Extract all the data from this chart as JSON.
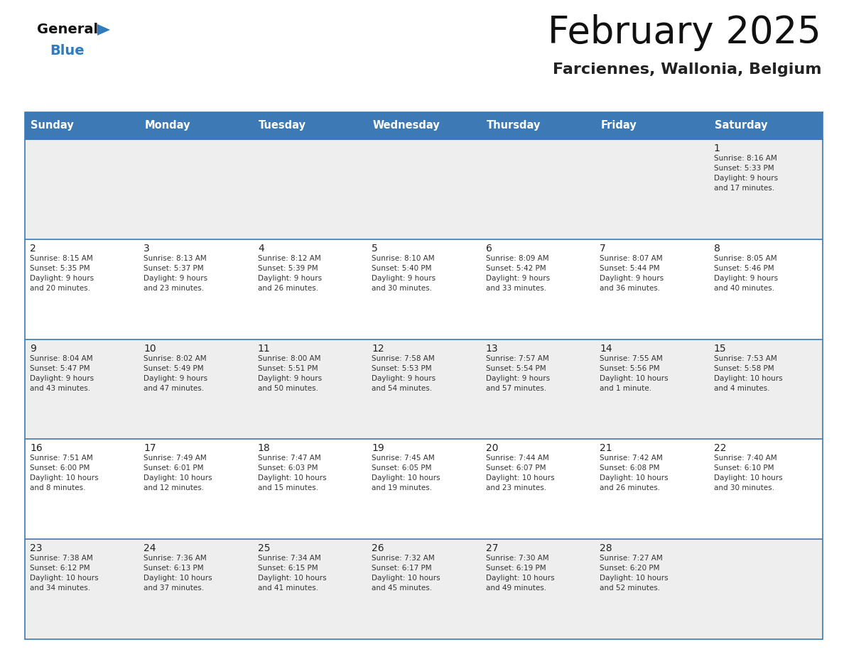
{
  "title": "February 2025",
  "subtitle": "Farciennes, Wallonia, Belgium",
  "days_of_week": [
    "Sunday",
    "Monday",
    "Tuesday",
    "Wednesday",
    "Thursday",
    "Friday",
    "Saturday"
  ],
  "header_bg": "#3d7ab5",
  "header_text": "#ffffff",
  "row_bg_odd": "#eeeeee",
  "row_bg_even": "#ffffff",
  "cell_border": "#3d7ab5",
  "cell_border_light": "#cccccc",
  "day_number_color": "#222222",
  "day_text_color": "#333333",
  "title_color": "#111111",
  "subtitle_color": "#222222",
  "logo_general_color": "#111111",
  "logo_blue_color": "#2e7bbf",
  "calendar": [
    [
      {
        "day": "",
        "info": ""
      },
      {
        "day": "",
        "info": ""
      },
      {
        "day": "",
        "info": ""
      },
      {
        "day": "",
        "info": ""
      },
      {
        "day": "",
        "info": ""
      },
      {
        "day": "",
        "info": ""
      },
      {
        "day": "1",
        "info": "Sunrise: 8:16 AM\nSunset: 5:33 PM\nDaylight: 9 hours\nand 17 minutes."
      }
    ],
    [
      {
        "day": "2",
        "info": "Sunrise: 8:15 AM\nSunset: 5:35 PM\nDaylight: 9 hours\nand 20 minutes."
      },
      {
        "day": "3",
        "info": "Sunrise: 8:13 AM\nSunset: 5:37 PM\nDaylight: 9 hours\nand 23 minutes."
      },
      {
        "day": "4",
        "info": "Sunrise: 8:12 AM\nSunset: 5:39 PM\nDaylight: 9 hours\nand 26 minutes."
      },
      {
        "day": "5",
        "info": "Sunrise: 8:10 AM\nSunset: 5:40 PM\nDaylight: 9 hours\nand 30 minutes."
      },
      {
        "day": "6",
        "info": "Sunrise: 8:09 AM\nSunset: 5:42 PM\nDaylight: 9 hours\nand 33 minutes."
      },
      {
        "day": "7",
        "info": "Sunrise: 8:07 AM\nSunset: 5:44 PM\nDaylight: 9 hours\nand 36 minutes."
      },
      {
        "day": "8",
        "info": "Sunrise: 8:05 AM\nSunset: 5:46 PM\nDaylight: 9 hours\nand 40 minutes."
      }
    ],
    [
      {
        "day": "9",
        "info": "Sunrise: 8:04 AM\nSunset: 5:47 PM\nDaylight: 9 hours\nand 43 minutes."
      },
      {
        "day": "10",
        "info": "Sunrise: 8:02 AM\nSunset: 5:49 PM\nDaylight: 9 hours\nand 47 minutes."
      },
      {
        "day": "11",
        "info": "Sunrise: 8:00 AM\nSunset: 5:51 PM\nDaylight: 9 hours\nand 50 minutes."
      },
      {
        "day": "12",
        "info": "Sunrise: 7:58 AM\nSunset: 5:53 PM\nDaylight: 9 hours\nand 54 minutes."
      },
      {
        "day": "13",
        "info": "Sunrise: 7:57 AM\nSunset: 5:54 PM\nDaylight: 9 hours\nand 57 minutes."
      },
      {
        "day": "14",
        "info": "Sunrise: 7:55 AM\nSunset: 5:56 PM\nDaylight: 10 hours\nand 1 minute."
      },
      {
        "day": "15",
        "info": "Sunrise: 7:53 AM\nSunset: 5:58 PM\nDaylight: 10 hours\nand 4 minutes."
      }
    ],
    [
      {
        "day": "16",
        "info": "Sunrise: 7:51 AM\nSunset: 6:00 PM\nDaylight: 10 hours\nand 8 minutes."
      },
      {
        "day": "17",
        "info": "Sunrise: 7:49 AM\nSunset: 6:01 PM\nDaylight: 10 hours\nand 12 minutes."
      },
      {
        "day": "18",
        "info": "Sunrise: 7:47 AM\nSunset: 6:03 PM\nDaylight: 10 hours\nand 15 minutes."
      },
      {
        "day": "19",
        "info": "Sunrise: 7:45 AM\nSunset: 6:05 PM\nDaylight: 10 hours\nand 19 minutes."
      },
      {
        "day": "20",
        "info": "Sunrise: 7:44 AM\nSunset: 6:07 PM\nDaylight: 10 hours\nand 23 minutes."
      },
      {
        "day": "21",
        "info": "Sunrise: 7:42 AM\nSunset: 6:08 PM\nDaylight: 10 hours\nand 26 minutes."
      },
      {
        "day": "22",
        "info": "Sunrise: 7:40 AM\nSunset: 6:10 PM\nDaylight: 10 hours\nand 30 minutes."
      }
    ],
    [
      {
        "day": "23",
        "info": "Sunrise: 7:38 AM\nSunset: 6:12 PM\nDaylight: 10 hours\nand 34 minutes."
      },
      {
        "day": "24",
        "info": "Sunrise: 7:36 AM\nSunset: 6:13 PM\nDaylight: 10 hours\nand 37 minutes."
      },
      {
        "day": "25",
        "info": "Sunrise: 7:34 AM\nSunset: 6:15 PM\nDaylight: 10 hours\nand 41 minutes."
      },
      {
        "day": "26",
        "info": "Sunrise: 7:32 AM\nSunset: 6:17 PM\nDaylight: 10 hours\nand 45 minutes."
      },
      {
        "day": "27",
        "info": "Sunrise: 7:30 AM\nSunset: 6:19 PM\nDaylight: 10 hours\nand 49 minutes."
      },
      {
        "day": "28",
        "info": "Sunrise: 7:27 AM\nSunset: 6:20 PM\nDaylight: 10 hours\nand 52 minutes."
      },
      {
        "day": "",
        "info": ""
      }
    ]
  ]
}
